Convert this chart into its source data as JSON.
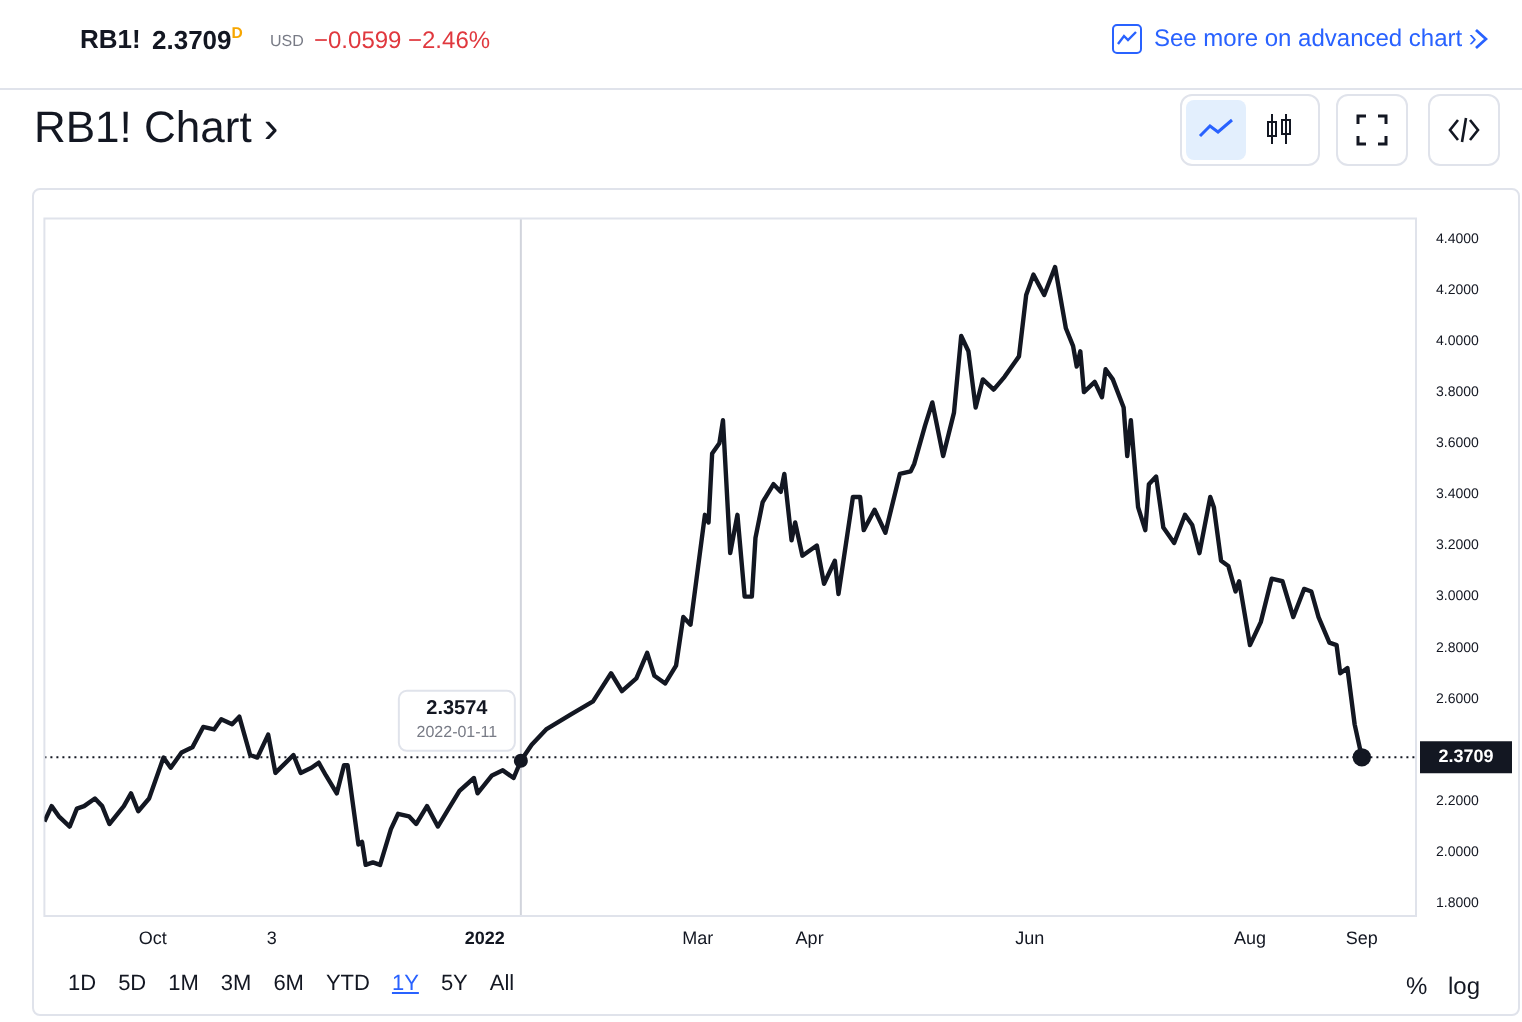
{
  "chart_data": {
    "type": "line",
    "title": "RB1! Chart ›",
    "x": [
      "2021-09-01",
      "2021-09-03",
      "2021-09-05",
      "2021-09-08",
      "2021-09-10",
      "2021-09-12",
      "2021-09-15",
      "2021-09-17",
      "2021-09-19",
      "2021-09-23",
      "2021-09-25",
      "2021-09-27",
      "2021-09-30",
      "2021-10-04",
      "2021-10-06",
      "2021-10-09",
      "2021-10-12",
      "2021-10-15",
      "2021-10-18",
      "2021-10-20",
      "2021-10-23",
      "2021-10-25",
      "2021-10-28",
      "2021-10-30",
      "2021-11-02",
      "2021-11-04",
      "2021-11-09",
      "2021-11-11",
      "2021-11-14",
      "2021-11-16",
      "2021-11-18",
      "2021-11-21",
      "2021-11-23",
      "2021-11-24",
      "2021-11-27",
      "2021-11-28",
      "2021-11-29",
      "2021-12-01",
      "2021-12-03",
      "2021-12-06",
      "2021-12-08",
      "2021-12-11",
      "2021-12-13",
      "2021-12-16",
      "2021-12-19",
      "2021-12-22",
      "2021-12-25",
      "2021-12-29",
      "2021-12-30",
      "2022-01-03",
      "2022-01-06",
      "2022-01-09",
      "2022-01-11",
      "2022-01-14",
      "2022-01-18",
      "2022-01-25",
      "2022-01-31",
      "2022-02-05",
      "2022-02-08",
      "2022-02-12",
      "2022-02-15",
      "2022-02-17",
      "2022-02-20",
      "2022-02-23",
      "2022-02-25",
      "2022-02-27",
      "2022-03-03",
      "2022-03-04",
      "2022-03-05",
      "2022-03-07",
      "2022-03-08",
      "2022-03-10",
      "2022-03-12",
      "2022-03-14",
      "2022-03-16",
      "2022-03-17",
      "2022-03-19",
      "2022-03-22",
      "2022-03-24",
      "2022-03-25",
      "2022-03-27",
      "2022-03-28",
      "2022-03-30",
      "2022-04-03",
      "2022-04-05",
      "2022-04-08",
      "2022-04-09",
      "2022-04-13",
      "2022-04-15",
      "2022-04-16",
      "2022-04-19",
      "2022-04-22",
      "2022-04-26",
      "2022-04-29",
      "2022-04-30",
      "2022-05-03",
      "2022-05-05",
      "2022-05-08",
      "2022-05-11",
      "2022-05-13",
      "2022-05-15",
      "2022-05-17",
      "2022-05-19",
      "2022-05-22",
      "2022-05-25",
      "2022-05-28",
      "2022-05-29",
      "2022-05-31",
      "2022-06-02",
      "2022-06-05",
      "2022-06-08",
      "2022-06-11",
      "2022-06-13",
      "2022-06-14",
      "2022-06-15",
      "2022-06-16",
      "2022-06-19",
      "2022-06-21",
      "2022-06-22",
      "2022-06-24",
      "2022-06-27",
      "2022-06-28",
      "2022-06-29",
      "2022-07-01",
      "2022-07-03",
      "2022-07-04",
      "2022-07-06",
      "2022-07-08",
      "2022-07-11",
      "2022-07-14",
      "2022-07-16",
      "2022-07-18",
      "2022-07-21",
      "2022-07-22",
      "2022-07-24",
      "2022-07-26",
      "2022-07-28",
      "2022-07-29",
      "2022-08-01",
      "2022-08-04",
      "2022-08-07",
      "2022-08-10",
      "2022-08-13",
      "2022-08-16",
      "2022-08-18",
      "2022-08-20",
      "2022-08-23",
      "2022-08-25",
      "2022-08-26",
      "2022-08-28",
      "2022-08-30",
      "2022-09-01"
    ],
    "series": [
      {
        "color": "#131722",
        "values": [
          2.12,
          2.18,
          2.14,
          2.1,
          2.17,
          2.18,
          2.21,
          2.18,
          2.11,
          2.18,
          2.23,
          2.16,
          2.21,
          2.37,
          2.33,
          2.39,
          2.41,
          2.49,
          2.48,
          2.52,
          2.5,
          2.53,
          2.38,
          2.37,
          2.46,
          2.31,
          2.38,
          2.31,
          2.33,
          2.35,
          2.3,
          2.23,
          2.34,
          2.34,
          2.03,
          2.04,
          1.95,
          1.96,
          1.95,
          2.09,
          2.15,
          2.14,
          2.11,
          2.18,
          2.1,
          2.17,
          2.24,
          2.29,
          2.23,
          2.3,
          2.32,
          2.29,
          2.3574,
          2.42,
          2.48,
          2.54,
          2.59,
          2.7,
          2.63,
          2.68,
          2.78,
          2.69,
          2.66,
          2.73,
          2.92,
          2.89,
          3.32,
          3.29,
          3.56,
          3.6,
          3.69,
          3.17,
          3.32,
          3.0,
          3.0,
          3.23,
          3.37,
          3.44,
          3.41,
          3.48,
          3.22,
          3.29,
          3.16,
          3.2,
          3.05,
          3.14,
          3.01,
          3.39,
          3.39,
          3.26,
          3.34,
          3.25,
          3.48,
          3.49,
          3.52,
          3.67,
          3.76,
          3.55,
          3.72,
          4.02,
          3.96,
          3.74,
          3.85,
          3.81,
          3.86,
          3.92,
          3.94,
          4.18,
          4.26,
          4.18,
          4.29,
          4.05,
          3.98,
          3.9,
          3.96,
          3.8,
          3.84,
          3.78,
          3.89,
          3.85,
          3.74,
          3.55,
          3.69,
          3.35,
          3.26,
          3.44,
          3.47,
          3.27,
          3.21,
          3.32,
          3.28,
          3.17,
          3.39,
          3.35,
          3.14,
          3.12,
          3.02,
          3.06,
          2.81,
          2.9,
          3.07,
          3.06,
          2.92,
          3.03,
          3.02,
          2.92,
          2.82,
          2.81,
          2.7,
          2.72,
          2.5,
          2.3709
        ]
      }
    ],
    "xlim": [
      "2021-09-01",
      "2022-09-16"
    ],
    "xticks": [
      {
        "value": "2021-10-01",
        "label": "Oct"
      },
      {
        "value": "2021-11-03",
        "label": "3"
      },
      {
        "value": "2022-01-01",
        "label": "2022"
      },
      {
        "value": "2022-03-01",
        "label": "Mar"
      },
      {
        "value": "2022-04-01",
        "label": "Apr"
      },
      {
        "value": "2022-06-01",
        "label": "Jun"
      },
      {
        "value": "2022-08-01",
        "label": "Aug"
      },
      {
        "value": "2022-09-01",
        "label": "Sep"
      }
    ],
    "ylim": [
      1.75,
      4.48
    ],
    "yticks": [
      {
        "value": 1.8,
        "label": "1.8000"
      },
      {
        "value": 2.0,
        "label": "2.0000"
      },
      {
        "value": 2.2,
        "label": "2.2000"
      },
      {
        "value": 2.6,
        "label": "2.6000"
      },
      {
        "value": 2.8,
        "label": "2.8000"
      },
      {
        "value": 3.0,
        "label": "3.0000"
      },
      {
        "value": 3.2,
        "label": "3.2000"
      },
      {
        "value": 3.4,
        "label": "3.4000"
      },
      {
        "value": 3.6,
        "label": "3.6000"
      },
      {
        "value": 3.8,
        "label": "3.8000"
      },
      {
        "value": 4.0,
        "label": "4.0000"
      },
      {
        "value": 4.2,
        "label": "4.2000"
      },
      {
        "value": 4.4,
        "label": "4.4000"
      }
    ],
    "ref_lines": [
      {
        "axis": "y",
        "value": 2.3709,
        "label": "2.3709",
        "color": "#131722",
        "line_style": "dotted"
      },
      {
        "axis": "x",
        "value": "2022-01-11",
        "color": "#d1d4dc",
        "line_style": "solid"
      }
    ],
    "annotations": [
      "RB1!",
      "2.3709$^{D}$",
      "USD",
      "−0.0599",
      "−2.46%",
      "See more on advanced chart ›",
      {
        "text": "2.3574",
        "x": "2022-01-11",
        "y": 2.3574
      },
      {
        "text": "2022-01-11",
        "x": "2022-01-11",
        "y": 2.3574
      },
      "1D",
      "5D",
      "1M",
      "3M",
      "6M",
      "YTD",
      "1Y",
      "5Y",
      "All",
      "%",
      "log"
    ],
    "grid": false,
    "legend": false,
    "marker": "none",
    "line_style": "solid"
  }
}
